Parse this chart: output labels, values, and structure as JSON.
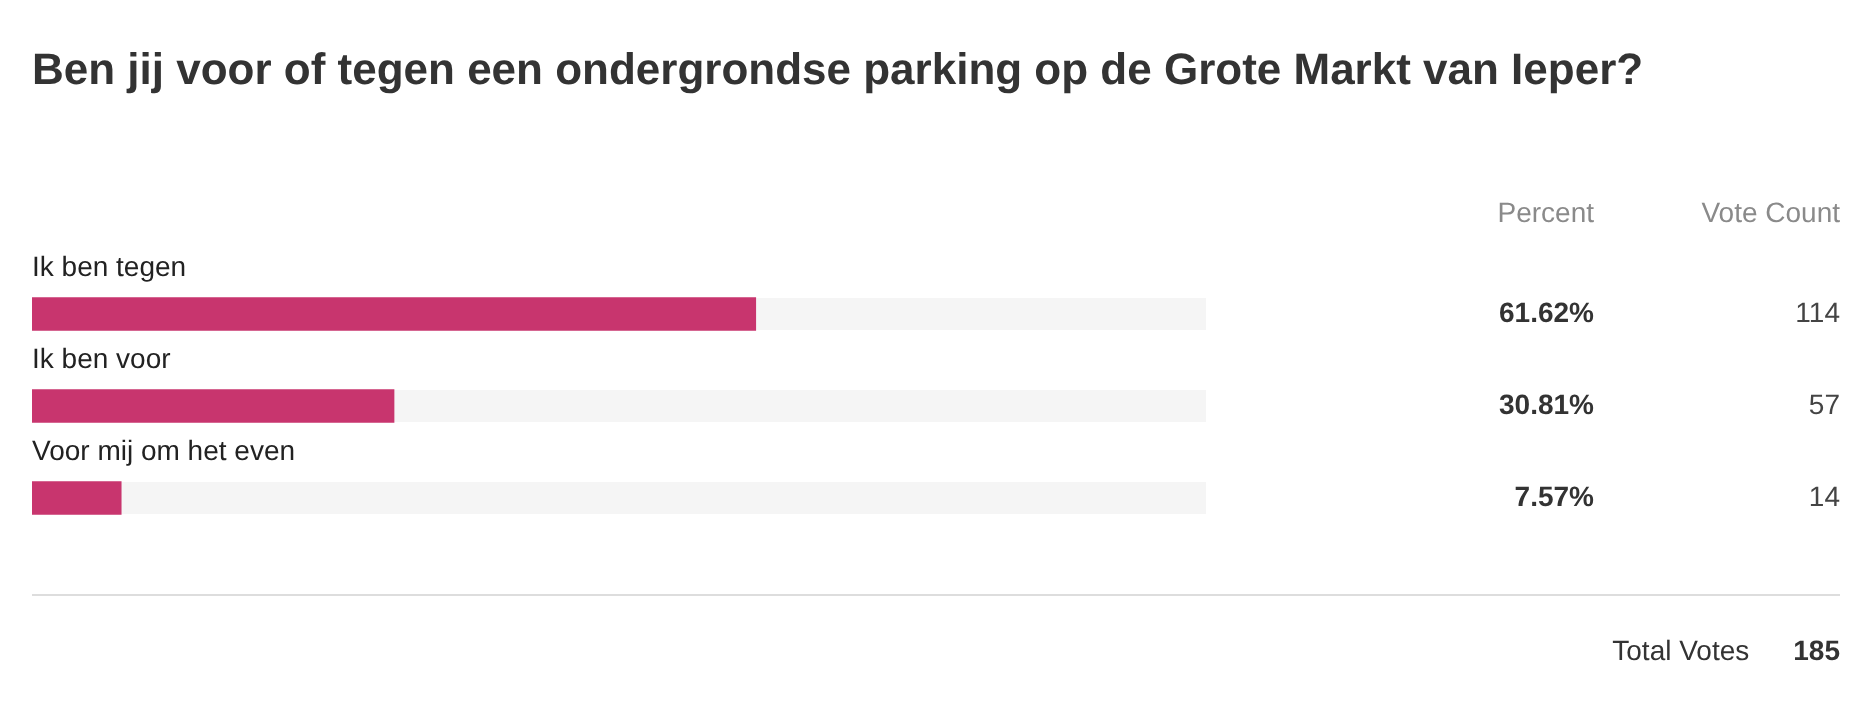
{
  "chart_data": {
    "type": "bar",
    "orientation": "horizontal",
    "title": "Ben jij voor of tegen een ondergrondse parking op de Grote Markt van Ieper?",
    "categories": [
      "Ik ben tegen",
      "Ik ben voor",
      "Voor mij om het even"
    ],
    "values": [
      61.62,
      30.81,
      7.57
    ],
    "value_labels": [
      "61.62%",
      "30.81%",
      "7.57%"
    ],
    "color": "#c8356e",
    "xlim": [
      0,
      100
    ],
    "tick_labels": false,
    "legend": false,
    "annotations": [
      "Percent",
      "Vote Count",
      "114",
      "57",
      "14",
      "Total Votes",
      "185"
    ]
  }
}
